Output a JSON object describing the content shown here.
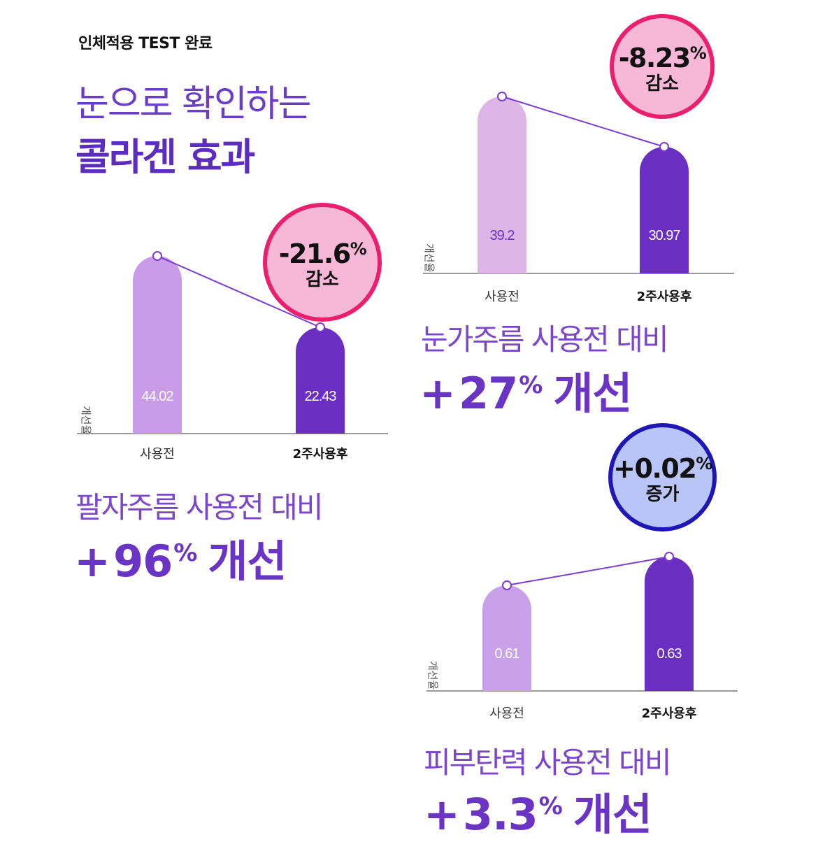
{
  "header": {
    "tag": "인체적용 TEST 완료",
    "headline_line1": "눈으로 확인하는",
    "headline_line2": "콜라겐 효과"
  },
  "colors": {
    "before_bar_1": "#c99be9",
    "before_bar_2": "#ddb5e6",
    "before_bar_3": "#c9a0ea",
    "after_bar": "#6b2ec2",
    "line": "#7a3dd0",
    "decrease_ring": "#ec1e6e",
    "decrease_fill": "#f7b7d6",
    "increase_ring": "#1f17b5",
    "increase_fill": "#b9c4f7",
    "accent_text": "#6a34c4"
  },
  "chart_data": [
    {
      "type": "bar",
      "title": "팔자주름",
      "ylabel": "개선율",
      "categories": [
        "사용전",
        "2주사용후"
      ],
      "values": [
        44.02,
        22.43
      ],
      "value_labels": [
        "44.02",
        "22.43"
      ],
      "change": {
        "value": "-21.6",
        "unit": "%",
        "label": "감소"
      },
      "caption": "팔자주름 사용전 대비",
      "improvement": {
        "sign": "+",
        "value": "96",
        "unit": "%",
        "word": "개선"
      }
    },
    {
      "type": "bar",
      "title": "눈가주름",
      "ylabel": "개선율",
      "categories": [
        "사용전",
        "2주사용후"
      ],
      "values": [
        39.2,
        30.97
      ],
      "value_labels": [
        "39.2",
        "30.97"
      ],
      "change": {
        "value": "-8.23",
        "unit": "%",
        "label": "감소"
      },
      "caption": "눈가주름 사용전 대비",
      "improvement": {
        "sign": "+",
        "value": "27",
        "unit": "%",
        "word": "개선"
      }
    },
    {
      "type": "bar",
      "title": "피부탄력",
      "ylabel": "개선율",
      "categories": [
        "사용전",
        "2주사용후"
      ],
      "values": [
        0.61,
        0.63
      ],
      "value_labels": [
        "0.61",
        "0.63"
      ],
      "change": {
        "value": "+0.02",
        "unit": "%",
        "label": "증가"
      },
      "caption": "피부탄력 사용전 대비",
      "improvement": {
        "sign": "+",
        "value": "3.3",
        "unit": "%",
        "word": "개선"
      }
    }
  ]
}
